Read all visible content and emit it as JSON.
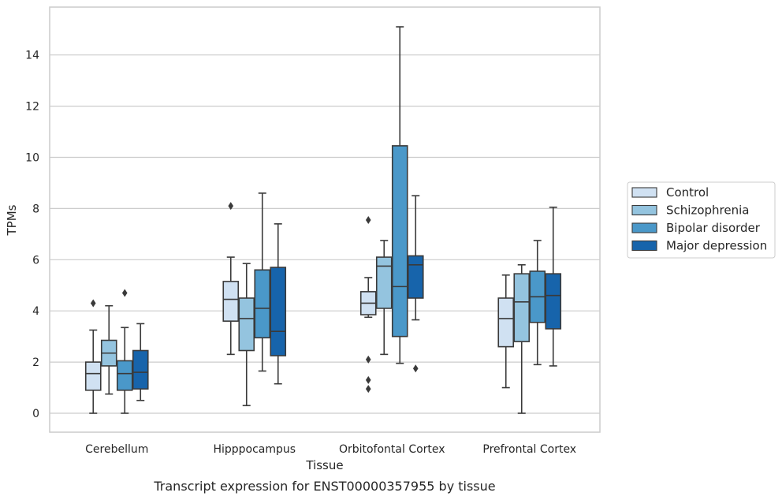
{
  "chart_data": {
    "type": "box",
    "caption": "Transcript expression for ENST00000357955 by tissue",
    "xlabel": "Tissue",
    "ylabel": "TPMs",
    "ylim": [
      -0.7,
      15.8
    ],
    "yticks": [
      0,
      2,
      4,
      6,
      8,
      10,
      12,
      14
    ],
    "grid": "horizontal",
    "legend_position": "right",
    "categories": [
      "Cerebellum",
      "Hipppocampus",
      "Orbitofontal Cortex",
      "Prefrontal Cortex"
    ],
    "series": [
      {
        "name": "Control",
        "color": "#d0e1f2",
        "boxes": [
          {
            "whislo": 0.0,
            "q1": 0.9,
            "med": 1.55,
            "q3": 2.0,
            "whishi": 3.25,
            "fliers": [
              4.3
            ]
          },
          {
            "whislo": 2.3,
            "q1": 3.6,
            "med": 4.45,
            "q3": 5.15,
            "whishi": 6.1,
            "fliers": [
              8.1
            ]
          },
          {
            "whislo": 3.75,
            "q1": 3.85,
            "med": 4.3,
            "q3": 4.75,
            "whishi": 5.3,
            "fliers": [
              2.1,
              1.3,
              0.95,
              7.55
            ]
          },
          {
            "whislo": 1.0,
            "q1": 2.6,
            "med": 3.7,
            "q3": 4.5,
            "whishi": 5.4,
            "fliers": []
          }
        ]
      },
      {
        "name": "Schizophrenia",
        "color": "#94c4df",
        "boxes": [
          {
            "whislo": 0.75,
            "q1": 1.85,
            "med": 2.35,
            "q3": 2.85,
            "whishi": 4.2,
            "fliers": []
          },
          {
            "whislo": 0.3,
            "q1": 2.45,
            "med": 3.7,
            "q3": 4.5,
            "whishi": 5.85,
            "fliers": []
          },
          {
            "whislo": 2.3,
            "q1": 4.1,
            "med": 5.75,
            "q3": 6.1,
            "whishi": 6.75,
            "fliers": []
          },
          {
            "whislo": 0.0,
            "q1": 2.8,
            "med": 4.35,
            "q3": 5.45,
            "whishi": 5.8,
            "fliers": []
          }
        ]
      },
      {
        "name": "Bipolar disorder",
        "color": "#4a98c9",
        "boxes": [
          {
            "whislo": 0.0,
            "q1": 0.9,
            "med": 1.55,
            "q3": 2.05,
            "whishi": 3.35,
            "fliers": [
              4.7
            ]
          },
          {
            "whislo": 1.65,
            "q1": 2.95,
            "med": 4.1,
            "q3": 5.6,
            "whishi": 8.6,
            "fliers": []
          },
          {
            "whislo": 1.95,
            "q1": 3.0,
            "med": 4.95,
            "q3": 10.45,
            "whishi": 15.1,
            "fliers": []
          },
          {
            "whislo": 1.9,
            "q1": 3.55,
            "med": 4.55,
            "q3": 5.55,
            "whishi": 6.75,
            "fliers": []
          }
        ]
      },
      {
        "name": "Major depression",
        "color": "#1764ab",
        "boxes": [
          {
            "whislo": 0.5,
            "q1": 0.95,
            "med": 1.6,
            "q3": 2.45,
            "whishi": 3.5,
            "fliers": []
          },
          {
            "whislo": 1.15,
            "q1": 2.25,
            "med": 3.2,
            "q3": 5.7,
            "whishi": 7.4,
            "fliers": []
          },
          {
            "whislo": 3.65,
            "q1": 4.5,
            "med": 5.8,
            "q3": 6.15,
            "whishi": 8.5,
            "fliers": [
              1.75
            ]
          },
          {
            "whislo": 1.85,
            "q1": 3.3,
            "med": 4.6,
            "q3": 5.45,
            "whishi": 8.05,
            "fliers": []
          }
        ]
      }
    ]
  }
}
